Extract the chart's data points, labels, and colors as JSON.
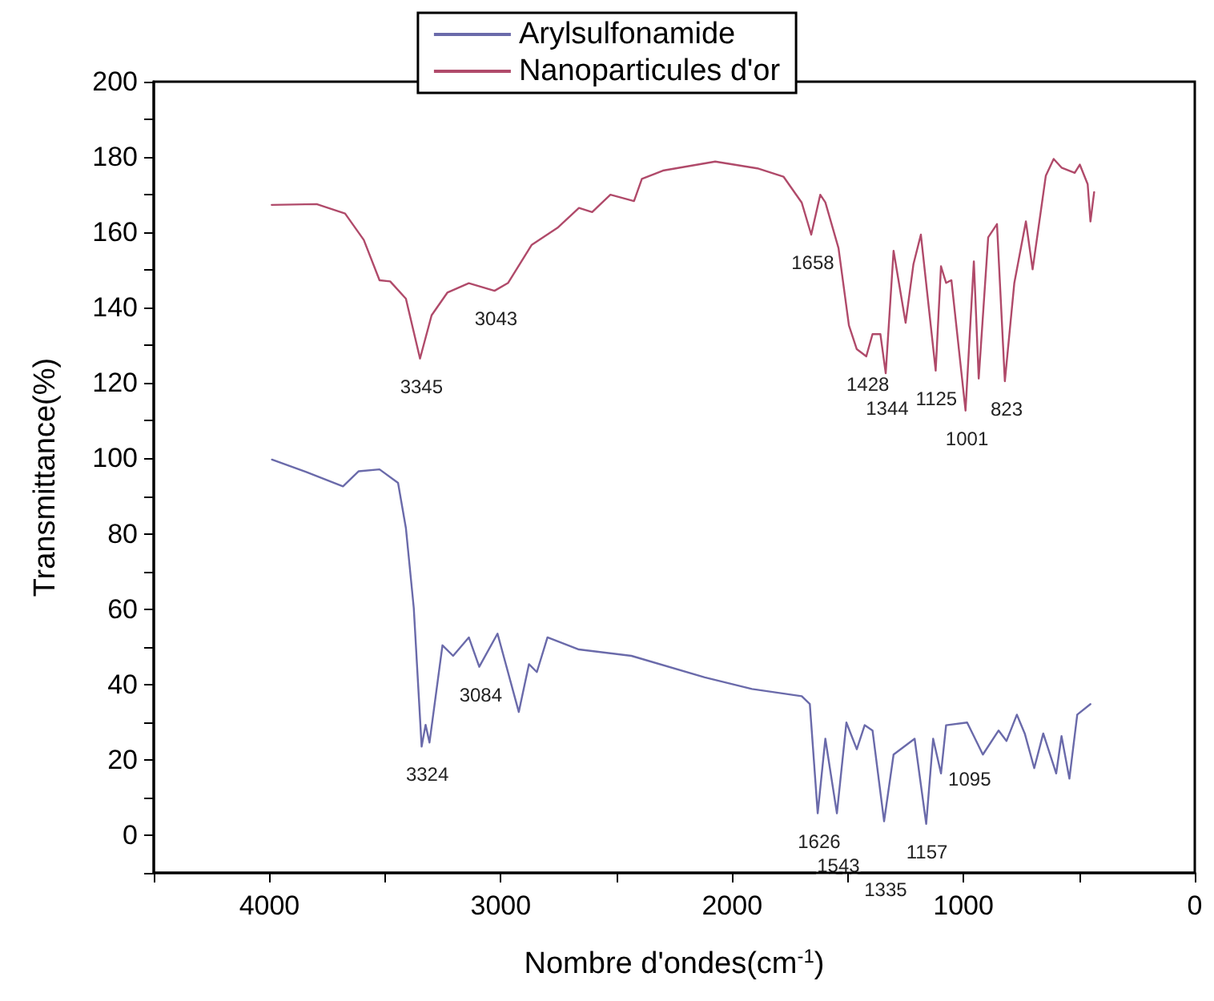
{
  "chart_data": {
    "type": "line",
    "xlabel": "Nombre d'ondes(cm$^{-1}$)",
    "ylabel": "Transmittance(%)",
    "xlim": [
      4500,
      0
    ],
    "xticks": [
      {
        "value": 4500,
        "label": null
      },
      4000,
      {
        "value": 3500,
        "label": null
      },
      3000,
      {
        "value": 2500,
        "label": null
      },
      2000,
      {
        "value": 1500,
        "label": null
      },
      1000,
      {
        "value": 500,
        "label": null
      },
      0
    ],
    "ylim": [
      -10,
      200
    ],
    "yticks": [
      {
        "value": -10,
        "label": null
      },
      0,
      {
        "value": 10,
        "label": null
      },
      20,
      {
        "value": 30,
        "label": null
      },
      40,
      {
        "value": 50,
        "label": null
      },
      60,
      {
        "value": 70,
        "label": null
      },
      80,
      {
        "value": 90,
        "label": null
      },
      100,
      {
        "value": 110,
        "label": null
      },
      120,
      {
        "value": 130,
        "label": null
      },
      140,
      {
        "value": 150,
        "label": null
      },
      160,
      {
        "value": 170,
        "label": null
      },
      180,
      {
        "value": 190,
        "label": null
      },
      200
    ],
    "grid": false,
    "legend": "top",
    "marker": "none",
    "line_style": "solid",
    "series": [
      {
        "name": "Arylsulfonamide",
        "color": "#6a6aaa",
        "x": [
          3989,
          3841,
          3682,
          3614,
          3524,
          3444,
          3410,
          3376,
          3342,
          3325,
          3308,
          3252,
          3206,
          3138,
          3093,
          3014,
          2922,
          2878,
          2844,
          2798,
          2662,
          2435,
          2118,
          1914,
          1699,
          1664,
          1630,
          1597,
          1547,
          1506,
          1461,
          1427,
          1393,
          1343,
          1302,
          1211,
          1161,
          1131,
          1097,
          1075,
          984,
          916,
          848,
          814,
          769,
          735,
          694,
          655,
          599,
          576,
          542,
          508,
          451
        ],
        "values": [
          99.7,
          96.4,
          92.6,
          96.6,
          97.1,
          93.5,
          81.5,
          60.3,
          23.5,
          29.3,
          24.6,
          50.4,
          47.6,
          52.5,
          44.7,
          53.5,
          32.7,
          45.4,
          43.3,
          52.5,
          49.3,
          47.6,
          41.9,
          38.8,
          36.9,
          34.8,
          5.8,
          25.6,
          5.8,
          29.9,
          22.8,
          29.2,
          27.8,
          3.7,
          21.4,
          25.6,
          3.0,
          25.6,
          16.4,
          29.2,
          29.9,
          21.4,
          27.8,
          25,
          32,
          27,
          17.8,
          27,
          16.4,
          26.3,
          15,
          32,
          34.8
        ]
      },
      {
        "name": "Nanoparticules d'or",
        "color": "#b04a6a",
        "x": [
          3990,
          3796,
          3673,
          3592,
          3524,
          3478,
          3410,
          3349,
          3299,
          3231,
          3138,
          3027,
          2968,
          2866,
          2755,
          2662,
          2605,
          2526,
          2424,
          2390,
          2299,
          2073,
          1891,
          1778,
          1699,
          1658,
          1619,
          1597,
          1540,
          1495,
          1461,
          1420,
          1393,
          1359,
          1336,
          1302,
          1250,
          1216,
          1184,
          1120,
          1097,
          1075,
          1052,
          991,
          955,
          934,
          893,
          855,
          821,
          780,
          730,
          701,
          644,
          610,
          576,
          519,
          497,
          463,
          451,
          435
        ],
        "values": [
          167.3,
          167.5,
          165,
          158,
          147.3,
          147,
          142.4,
          126.5,
          138,
          144,
          146.5,
          144.5,
          146.6,
          156.7,
          161.2,
          166.5,
          165.4,
          170,
          168.3,
          174.2,
          176.4,
          178.8,
          177,
          174.8,
          167.9,
          159.4,
          170,
          168,
          155.8,
          135.3,
          129,
          127.1,
          133,
          133,
          122.6,
          155.1,
          136,
          151.6,
          159.4,
          123.3,
          151,
          146.6,
          147.3,
          112.7,
          152.3,
          121.2,
          158.7,
          162.2,
          120.5,
          146.6,
          162.9,
          150.2,
          175,
          179.5,
          177.2,
          175.8,
          178,
          172.8,
          162.9,
          170.7
        ]
      }
    ],
    "annotations": [
      {
        "text": "3345",
        "x": 3349,
        "y": 126.5
      },
      {
        "text": "3043",
        "x": 3027,
        "y": 144.5
      },
      {
        "text": "1658",
        "x": 1658,
        "y": 159.4
      },
      {
        "text": "1428",
        "x": 1420,
        "y": 127.1
      },
      {
        "text": "1344",
        "x": 1336,
        "y": 122.6
      },
      {
        "text": "1125",
        "x": 1120,
        "y": 123.3
      },
      {
        "text": "1001",
        "x": 991,
        "y": 112.7
      },
      {
        "text": "823",
        "x": 821,
        "y": 120.5
      },
      {
        "text": "3324",
        "x": 3324,
        "y": 23.5
      },
      {
        "text": "3084",
        "x": 3093,
        "y": 44.7
      },
      {
        "text": "1626",
        "x": 1630,
        "y": 5.8
      },
      {
        "text": "1543",
        "x": 1547,
        "y": 5.8
      },
      {
        "text": "1335",
        "x": 1343,
        "y": 3.7
      },
      {
        "text": "1157",
        "x": 1161,
        "y": 3.0
      },
      {
        "text": "1095",
        "x": 1097,
        "y": 16.4
      }
    ]
  }
}
